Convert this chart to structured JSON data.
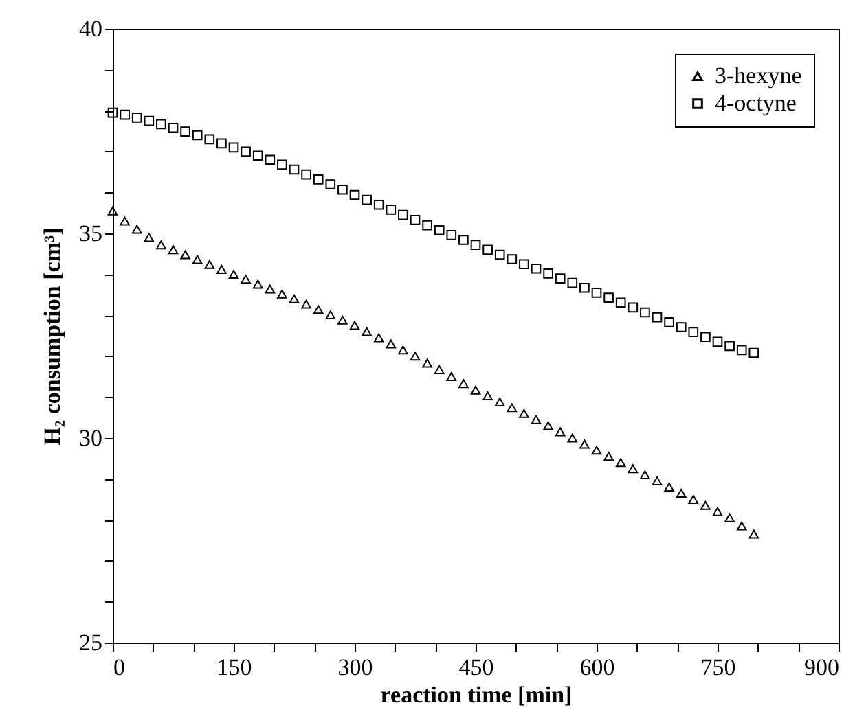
{
  "chart_data": {
    "type": "scatter",
    "xlabel": "reaction time [min]",
    "ylabel": "H₂ consumption [cm³]",
    "legend": "top right",
    "xlim": [
      0,
      900
    ],
    "ylim": [
      25,
      40
    ],
    "xticks": [
      0,
      {
        "value": 50,
        "label": null
      },
      {
        "value": 100,
        "label": null
      },
      150,
      {
        "value": 200,
        "label": null
      },
      {
        "value": 250,
        "label": null
      },
      300,
      {
        "value": 350,
        "label": null
      },
      {
        "value": 400,
        "label": null
      },
      450,
      {
        "value": 500,
        "label": null
      },
      {
        "value": 550,
        "label": null
      },
      600,
      {
        "value": 650,
        "label": null
      },
      {
        "value": 700,
        "label": null
      },
      750,
      {
        "value": 800,
        "label": null
      },
      {
        "value": 850,
        "label": null
      },
      900
    ],
    "yticks": [
      25,
      {
        "value": 26,
        "label": null
      },
      {
        "value": 27,
        "label": null
      },
      {
        "value": 28,
        "label": null
      },
      {
        "value": 29,
        "label": null
      },
      30,
      {
        "value": 31,
        "label": null
      },
      {
        "value": 32,
        "label": null
      },
      {
        "value": 33,
        "label": null
      },
      {
        "value": 34,
        "label": null
      },
      35,
      {
        "value": 36,
        "label": null
      },
      {
        "value": 37,
        "label": null
      },
      {
        "value": 38,
        "label": null
      },
      {
        "value": 39,
        "label": null
      },
      40
    ],
    "x": [
      0,
      15,
      30,
      45,
      60,
      75,
      90,
      105,
      120,
      135,
      150,
      165,
      180,
      195,
      210,
      225,
      240,
      255,
      270,
      285,
      300,
      315,
      330,
      345,
      360,
      375,
      390,
      405,
      420,
      435,
      450,
      465,
      480,
      495,
      510,
      525,
      540,
      555,
      570,
      585,
      600,
      615,
      630,
      645,
      660,
      675,
      690,
      705,
      720,
      735,
      750,
      765,
      780,
      795
    ],
    "series": [
      {
        "name": "3-hexyne",
        "color": "#000000",
        "marker": "triangle",
        "values": [
          35.55,
          35.3,
          35.1,
          34.9,
          34.72,
          34.6,
          34.48,
          34.36,
          34.24,
          34.12,
          34.0,
          33.88,
          33.76,
          33.64,
          33.52,
          33.4,
          33.27,
          33.14,
          33.01,
          32.88,
          32.75,
          32.6,
          32.45,
          32.3,
          32.15,
          32.0,
          31.83,
          31.67,
          31.5,
          31.33,
          31.17,
          31.03,
          30.88,
          30.74,
          30.6,
          30.45,
          30.3,
          30.15,
          30.0,
          29.85,
          29.7,
          29.55,
          29.4,
          29.25,
          29.1,
          28.95,
          28.8,
          28.65,
          28.5,
          28.35,
          28.2,
          28.05,
          27.85,
          27.65
        ]
      },
      {
        "name": "4-octyne",
        "color": "#000000",
        "marker": "square",
        "values": [
          37.95,
          37.9,
          37.83,
          37.75,
          37.67,
          37.58,
          37.49,
          37.4,
          37.3,
          37.2,
          37.1,
          37.0,
          36.9,
          36.8,
          36.68,
          36.56,
          36.44,
          36.32,
          36.2,
          36.07,
          35.94,
          35.82,
          35.7,
          35.58,
          35.45,
          35.33,
          35.2,
          35.08,
          34.96,
          34.84,
          34.72,
          34.6,
          34.48,
          34.37,
          34.25,
          34.14,
          34.02,
          33.9,
          33.79,
          33.67,
          33.55,
          33.43,
          33.31,
          33.19,
          33.07,
          32.95,
          32.83,
          32.71,
          32.59,
          32.47,
          32.35,
          32.25,
          32.15,
          32.08
        ]
      }
    ]
  }
}
